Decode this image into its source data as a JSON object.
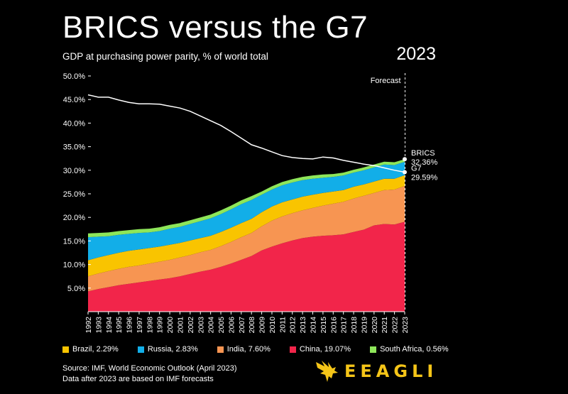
{
  "title": "BRICS versus the G7",
  "subtitle": "GDP at purchasing power parity, % of world total",
  "year_label": "2023",
  "forecast_label": "Forecast",
  "source_line1": "Source: IMF, World Economic Outlook (April 2023)",
  "source_line2": "Data after 2023 are based on IMF forecasts",
  "logo_text": "EEAGLI",
  "colors": {
    "background": "#000000",
    "china": "#f2254a",
    "india": "#f79552",
    "brazil": "#f9c400",
    "russia": "#12aee8",
    "south_africa": "#8ee65a",
    "g7": "#ffffff",
    "logo": "#f5c518"
  },
  "legend": [
    {
      "key": "brazil",
      "label": "Brazil, 2.29%"
    },
    {
      "key": "russia",
      "label": "Russia, 2.83%"
    },
    {
      "key": "india",
      "label": "India, 7.60%"
    },
    {
      "key": "china",
      "label": "China, 19.07%"
    },
    {
      "key": "south_africa",
      "label": "South Africa, 0.56%"
    }
  ],
  "chart_data": {
    "type": "area",
    "title": "BRICS versus the G7",
    "subtitle": "GDP at purchasing power parity, % of world total",
    "xlabel": "",
    "ylabel": "",
    "ylim": [
      0,
      50
    ],
    "y_ticks": [
      5,
      10,
      15,
      20,
      25,
      30,
      35,
      40,
      45,
      50
    ],
    "y_tick_labels": [
      "5.0%",
      "10.0%",
      "15.0%",
      "20.0%",
      "25.0%",
      "30.0%",
      "35.0%",
      "40.0%",
      "45.0%",
      "50.0%"
    ],
    "x": [
      1992,
      1993,
      1994,
      1995,
      1996,
      1997,
      1998,
      1999,
      2000,
      2001,
      2002,
      2003,
      2004,
      2005,
      2006,
      2007,
      2008,
      2009,
      2010,
      2011,
      2012,
      2013,
      2014,
      2015,
      2016,
      2017,
      2018,
      2019,
      2020,
      2021,
      2022,
      2023
    ],
    "x_tick_labels": [
      "1992",
      "1993",
      "1994",
      "1995",
      "1996",
      "1997",
      "1998",
      "1999",
      "2000",
      "2001",
      "2002",
      "2003",
      "2004",
      "2005",
      "2006",
      "2007",
      "2008",
      "2009",
      "2010",
      "2011",
      "2012",
      "2013",
      "2014",
      "2015",
      "2016",
      "2017",
      "2018",
      "2019",
      "2020",
      "2021",
      "2022",
      "2023"
    ],
    "stack_order": [
      "china",
      "india",
      "brazil",
      "russia",
      "south_africa"
    ],
    "series": [
      {
        "key": "china",
        "name": "China",
        "values": [
          4.3,
          4.8,
          5.2,
          5.6,
          5.9,
          6.2,
          6.5,
          6.8,
          7.1,
          7.5,
          8.0,
          8.5,
          8.9,
          9.5,
          10.2,
          11.0,
          11.8,
          13.0,
          13.8,
          14.5,
          15.1,
          15.6,
          15.9,
          16.1,
          16.2,
          16.4,
          16.9,
          17.4,
          18.3,
          18.6,
          18.5,
          19.07
        ]
      },
      {
        "key": "india",
        "name": "India",
        "values": [
          3.2,
          3.3,
          3.4,
          3.5,
          3.6,
          3.6,
          3.7,
          3.8,
          3.9,
          4.0,
          4.0,
          4.1,
          4.2,
          4.4,
          4.6,
          4.8,
          4.9,
          5.1,
          5.5,
          5.7,
          5.8,
          5.9,
          6.1,
          6.4,
          6.7,
          6.9,
          7.1,
          7.2,
          6.9,
          7.2,
          7.4,
          7.6
        ]
      },
      {
        "key": "brazil",
        "name": "Brazil",
        "values": [
          3.4,
          3.4,
          3.4,
          3.4,
          3.4,
          3.4,
          3.3,
          3.2,
          3.2,
          3.1,
          3.1,
          3.0,
          3.0,
          3.0,
          3.0,
          3.0,
          3.0,
          3.0,
          3.0,
          3.0,
          2.9,
          2.9,
          2.8,
          2.7,
          2.6,
          2.5,
          2.5,
          2.4,
          2.4,
          2.4,
          2.3,
          2.29
        ]
      },
      {
        "key": "russia",
        "name": "Russia",
        "values": [
          4.9,
          4.4,
          4.0,
          3.8,
          3.6,
          3.5,
          3.3,
          3.3,
          3.4,
          3.4,
          3.5,
          3.6,
          3.7,
          3.8,
          3.9,
          4.0,
          4.0,
          3.7,
          3.6,
          3.6,
          3.6,
          3.5,
          3.4,
          3.2,
          3.1,
          3.1,
          3.0,
          3.0,
          3.0,
          3.0,
          2.9,
          2.83
        ]
      },
      {
        "key": "south_africa",
        "name": "South Africa",
        "values": [
          0.8,
          0.8,
          0.8,
          0.8,
          0.8,
          0.8,
          0.8,
          0.8,
          0.8,
          0.8,
          0.8,
          0.8,
          0.8,
          0.8,
          0.8,
          0.8,
          0.8,
          0.7,
          0.7,
          0.7,
          0.7,
          0.7,
          0.7,
          0.7,
          0.6,
          0.6,
          0.6,
          0.6,
          0.6,
          0.6,
          0.6,
          0.56
        ]
      },
      {
        "key": "g7",
        "name": "G7",
        "values": [
          46.0,
          45.5,
          45.5,
          44.9,
          44.4,
          44.1,
          44.1,
          44.0,
          43.6,
          43.2,
          42.5,
          41.5,
          40.5,
          39.5,
          38.2,
          36.8,
          35.4,
          34.7,
          33.9,
          33.1,
          32.7,
          32.5,
          32.4,
          32.8,
          32.6,
          32.1,
          31.7,
          31.3,
          31.0,
          30.5,
          30.0,
          29.59
        ]
      }
    ],
    "end_labels": {
      "brics_name": "BRICS",
      "brics_value": "32.36%",
      "g7_name": "G7",
      "g7_value": "29.59%"
    },
    "forecast_start": 2023
  }
}
